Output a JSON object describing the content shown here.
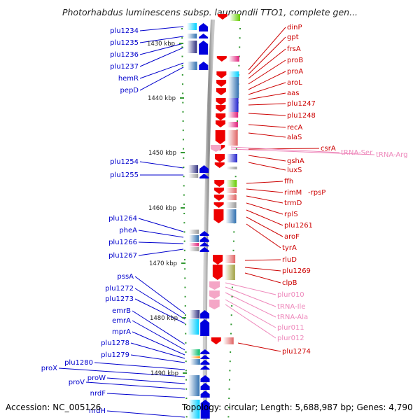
{
  "title": "Photorhabdus luminescens subsp. laumondii TTO1, complete gen...",
  "footer": {
    "accession": "Accession: NC_005126",
    "topology": "Topology: circular; Length: 5,688,987 bp; Genes: 4,790"
  },
  "scale_ticks": [
    "1430 kbp",
    "1440 kbp",
    "1450 kbp",
    "1460 kbp",
    "1470 kbp",
    "1480 kbp",
    "1490 kbp"
  ],
  "left_labels": [
    "plu1234",
    "plu1235",
    "plu1236",
    "plu1237",
    "hemR",
    "pepD",
    "plu1254",
    "plu1255",
    "plu1264",
    "pheA",
    "plu1266",
    "plu1267",
    "pssA",
    "plu1272",
    "plu1273",
    "emrB",
    "emrA",
    "mprA",
    "plu1278",
    "plu1279",
    "plu1280",
    "proX",
    "proW",
    "proV",
    "nrdF",
    "nrdH"
  ],
  "right_labels": [
    "dinP",
    "gpt",
    "frsA",
    "proB",
    "proA",
    "aroL",
    "aas",
    "plu1247",
    "plu1248",
    "recA",
    "alaS",
    "csrA",
    "gshA",
    "luxS",
    "ffh",
    "rimM",
    "rpsP",
    "trmD",
    "rplS",
    "plu1261",
    "aroF",
    "tyrA",
    "rluD",
    "plu1269",
    "clpB",
    "plu1274"
  ],
  "rna_labels": [
    "tRNA-Ser",
    "tRNA-Arg",
    "plur010",
    "tRNA-Ile",
    "tRNA-Ala",
    "plur011",
    "plur012"
  ],
  "colors": {
    "left_label": "#0000cc",
    "right_label": "#cc0000",
    "rna_label": "#ee88bb",
    "forward_gene": "#0000dd",
    "reverse_gene": "#ee0000",
    "rna_gene": "#f4a6c6",
    "tick": "#339933",
    "backbone": "#888888"
  }
}
